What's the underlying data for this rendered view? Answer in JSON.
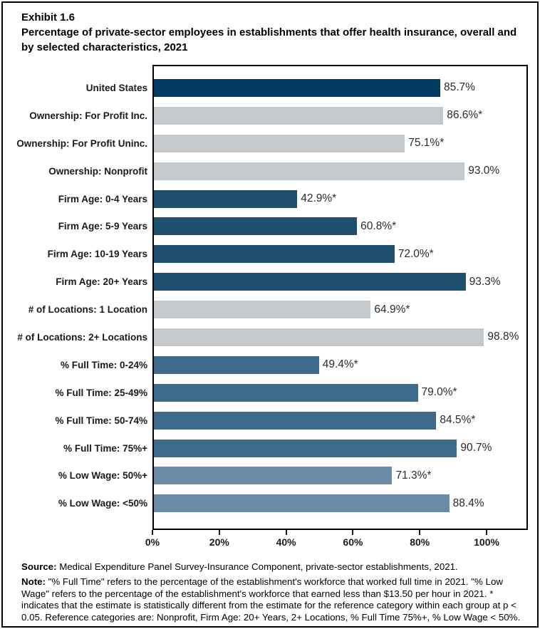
{
  "title": {
    "exhibit_number": "Exhibit 1.6",
    "text": "Percentage of private-sector employees in establishments that offer health insurance, overall and by selected characteristics, 2021"
  },
  "chart_data": {
    "type": "bar",
    "orientation": "horizontal",
    "title": "Percentage of private-sector employees in establishments that offer health insurance, overall and by selected characteristics, 2021",
    "categories": [
      "United States",
      "Ownership: For Profit Inc.",
      "Ownership: For Profit Uninc.",
      "Ownership: Nonprofit",
      "Firm Age: 0-4 Years",
      "Firm Age: 5-9 Years",
      "Firm Age: 10-19 Years",
      "Firm Age: 20+ Years",
      "# of Locations: 1 Location",
      "# of Locations: 2+ Locations",
      "% Full Time: 0-24%",
      "% Full Time: 25-49%",
      "% Full Time: 50-74%",
      "% Full Time: 75%+",
      "% Low Wage: 50%+",
      "% Low Wage: <50%"
    ],
    "values": [
      85.7,
      86.6,
      75.1,
      93.0,
      42.9,
      60.8,
      72.0,
      93.3,
      64.9,
      98.8,
      49.4,
      79.0,
      84.5,
      90.7,
      71.3,
      88.4
    ],
    "value_labels": [
      "85.7%",
      "86.6%*",
      "75.1%*",
      "93.0%",
      "42.9%*",
      "60.8%*",
      "72.0%*",
      "93.3%",
      "64.9%*",
      "98.8%",
      "49.4%*",
      "79.0%*",
      "84.5%*",
      "90.7%",
      "71.3%*",
      "88.4%"
    ],
    "bar_colors": [
      "#003A63",
      "#C4C9CE",
      "#C4C9CE",
      "#C4C9CE",
      "#205070",
      "#205070",
      "#205070",
      "#205070",
      "#C4C9CE",
      "#C4C9CE",
      "#3E6B8C",
      "#3E6B8C",
      "#3E6B8C",
      "#3E6B8C",
      "#6B8BA6",
      "#6B8BA6"
    ],
    "color_groups": {
      "overall_navy": "#003A63",
      "ownership_locations_gray": "#C4C9CE",
      "firm_age_blue": "#205070",
      "full_time_slate": "#3E6B8C",
      "low_wage_light_slate": "#6B8BA6"
    },
    "x_ticks": [
      0,
      20,
      40,
      60,
      80,
      100
    ],
    "x_tick_labels": [
      "0%",
      "20%",
      "40%",
      "60%",
      "80%",
      "100%"
    ],
    "xlim": [
      0,
      111.5
    ],
    "grid": false,
    "legend": "none"
  },
  "footer": {
    "source_label": "Source:",
    "source_text": " Medical Expenditure Panel Survey-Insurance Component, private-sector establishments, 2021.",
    "note_label": "Note:",
    "note_text": " \"% Full Time\" refers to the percentage of the establishment's workforce that worked full time in 2021. \"% Low Wage\" refers to the percentage of the establishment's workforce that earned less than $13.50 per hour in 2021. * indicates that the estimate is statistically different from the estimate for the reference category within each group at p < 0.05.  Reference categories are: Nonprofit, Firm Age: 20+ Years, 2+ Locations, % Full Time 75%+, % Low Wage < 50%."
  }
}
